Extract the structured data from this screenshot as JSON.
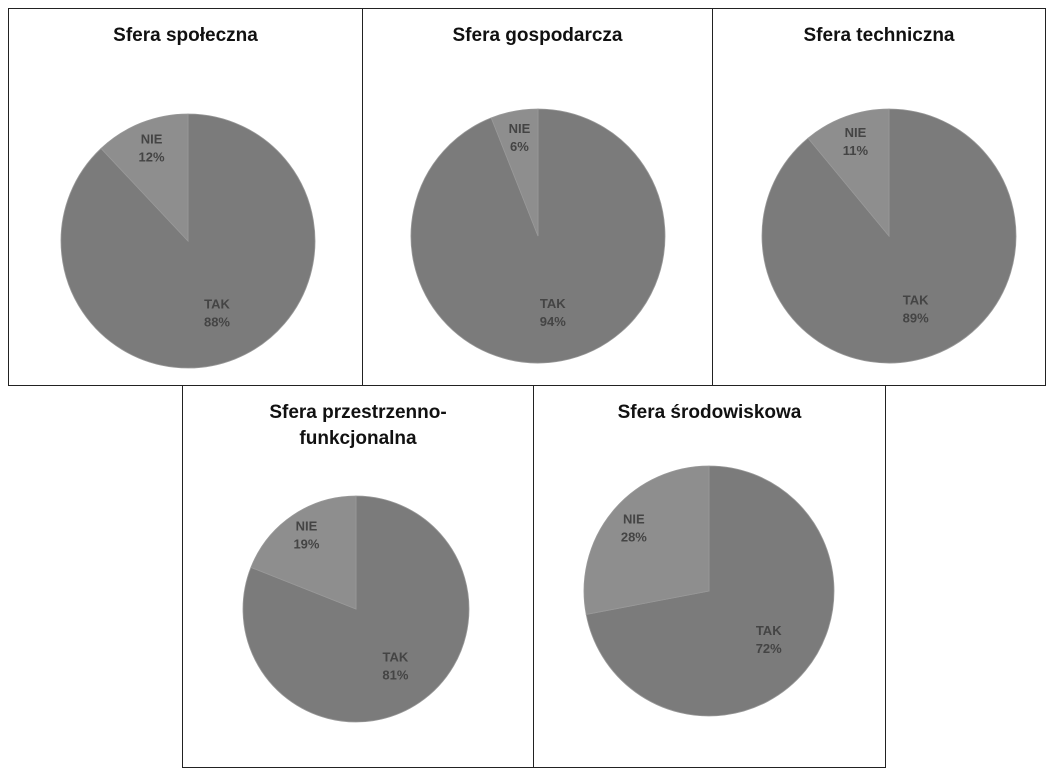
{
  "chart_data": [
    {
      "type": "pie",
      "title": "Sfera społeczna",
      "categories": [
        "TAK",
        "NIE"
      ],
      "values": [
        88,
        12
      ],
      "value_labels": [
        "88%",
        "12%"
      ],
      "colors": [
        "#7b7b7b",
        "#8e8e8e"
      ]
    },
    {
      "type": "pie",
      "title": "Sfera gospodarcza",
      "categories": [
        "TAK",
        "NIE"
      ],
      "values": [
        94,
        6
      ],
      "value_labels": [
        "94%",
        "6%"
      ],
      "colors": [
        "#7b7b7b",
        "#8e8e8e"
      ]
    },
    {
      "type": "pie",
      "title": "Sfera techniczna",
      "categories": [
        "TAK",
        "NIE"
      ],
      "values": [
        89,
        11
      ],
      "value_labels": [
        "89%",
        "11%"
      ],
      "colors": [
        "#7b7b7b",
        "#8e8e8e"
      ]
    },
    {
      "type": "pie",
      "title": "Sfera przestrzenno-funkcjonalna",
      "categories": [
        "TAK",
        "NIE"
      ],
      "values": [
        81,
        19
      ],
      "value_labels": [
        "81%",
        "19%"
      ],
      "colors": [
        "#7b7b7b",
        "#8e8e8e"
      ]
    },
    {
      "type": "pie",
      "title": "Sfera środowiskowa",
      "categories": [
        "TAK",
        "NIE"
      ],
      "values": [
        72,
        28
      ],
      "value_labels": [
        "72%",
        "28%"
      ],
      "colors": [
        "#7b7b7b",
        "#8e8e8e"
      ]
    }
  ]
}
